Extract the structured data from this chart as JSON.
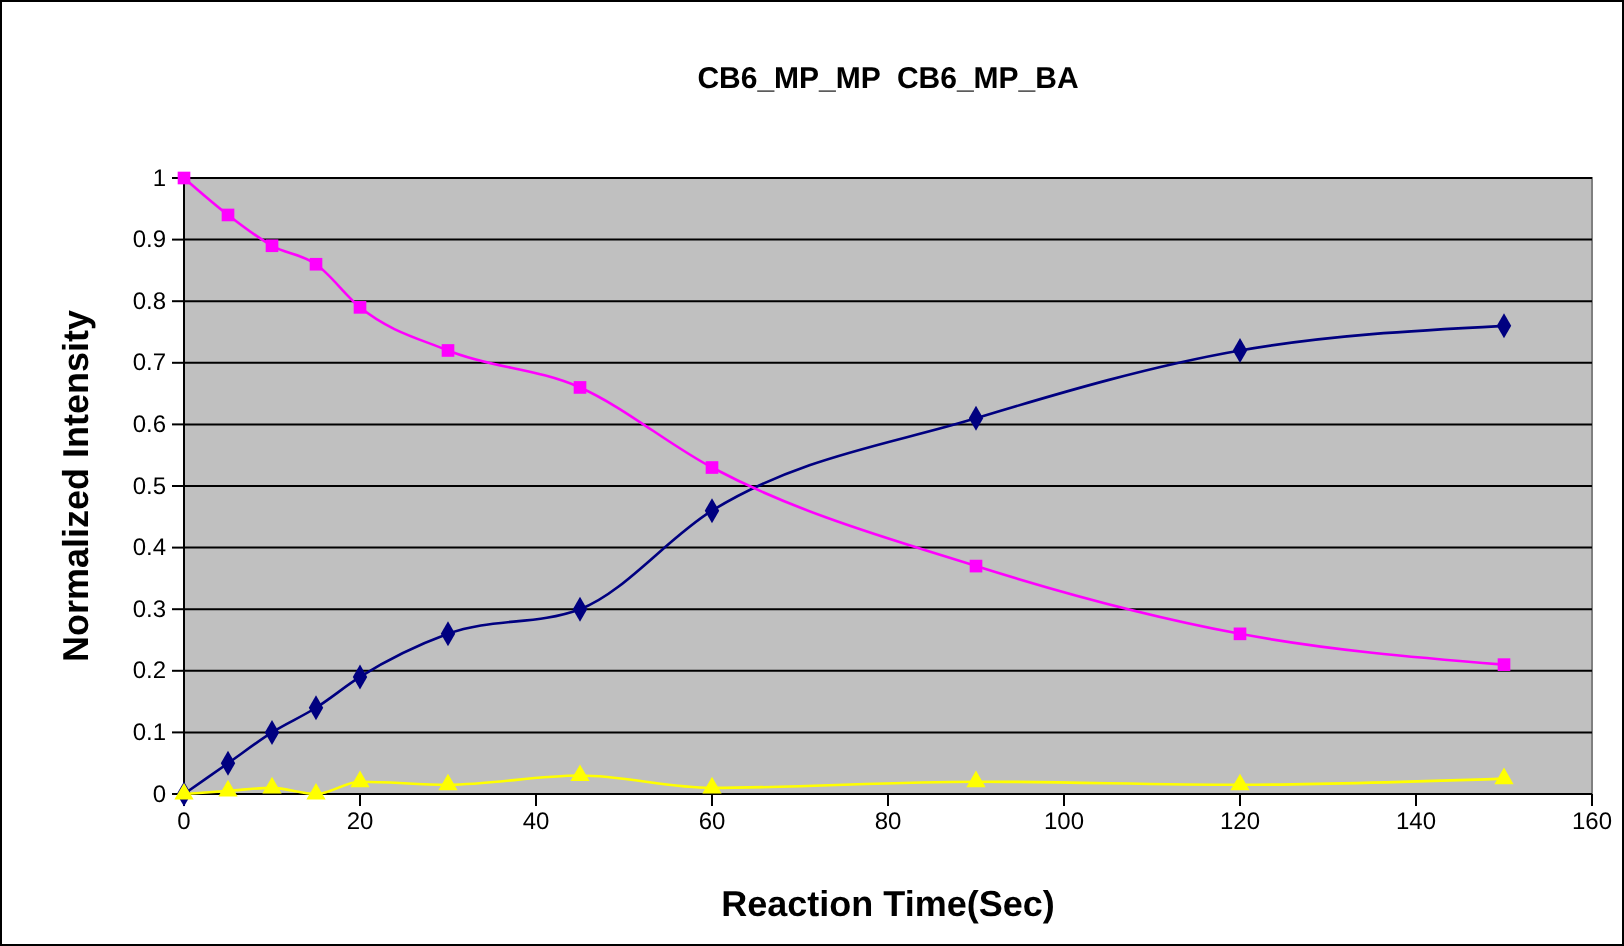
{
  "chart_data": {
    "type": "line",
    "title": "CB6_MP_MP  CB6_MP_BA",
    "xlabel": "Reaction Time(Sec)",
    "ylabel": "Normalized Intensity",
    "x": [
      0,
      5,
      10,
      15,
      20,
      30,
      45,
      60,
      90,
      120,
      150
    ],
    "series": [
      {
        "color": "#000080",
        "marker": "diamond",
        "values": [
          0,
          0.05,
          0.1,
          0.14,
          0.19,
          0.26,
          0.3,
          0.46,
          0.61,
          0.72,
          0.76
        ]
      },
      {
        "color": "#ff00ff",
        "marker": "square",
        "values": [
          1,
          0.94,
          0.89,
          0.86,
          0.79,
          0.72,
          0.66,
          0.53,
          0.37,
          0.26,
          0.21
        ]
      },
      {
        "color": "#ffff00",
        "marker": "triangle",
        "values": [
          0,
          0.005,
          0.01,
          0,
          0.02,
          0.015,
          0.03,
          0.01,
          0.02,
          0.015,
          0.025
        ]
      }
    ],
    "xlim": [
      0,
      160
    ],
    "xticks": [
      0,
      20,
      40,
      60,
      80,
      100,
      120,
      140,
      160
    ],
    "ylim": [
      0,
      1
    ],
    "yticks": [
      0,
      0.1,
      0.2,
      0.3,
      0.4,
      0.5,
      0.6,
      0.7,
      0.8,
      0.9,
      1
    ],
    "grid": "y",
    "line_style": "solid"
  }
}
